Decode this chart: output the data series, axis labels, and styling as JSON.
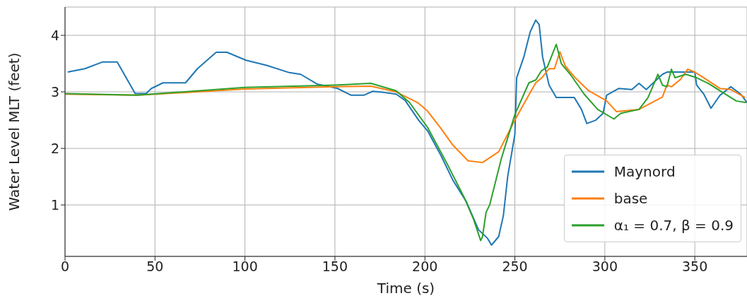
{
  "chart_data": {
    "type": "line",
    "xlabel": "Time (s)",
    "ylabel": "Water Level MLT (feet)",
    "xlim": [
      0,
      379
    ],
    "ylim": [
      0.09,
      4.5
    ],
    "xticks": [
      0,
      50,
      100,
      150,
      200,
      250,
      300,
      350
    ],
    "yticks": [
      1,
      2,
      3,
      4
    ],
    "grid": true,
    "legend": "bottom right",
    "line_style": "solid",
    "marker": "none",
    "series": [
      {
        "name": "Maynord",
        "color": "#1f77b4",
        "x": [
          1.5,
          11,
          21,
          29,
          39,
          45,
          48,
          54.5,
          67,
          73.6,
          84,
          90,
          100.5,
          112,
          124.7,
          131,
          140,
          151.5,
          159,
          166,
          171,
          177,
          184,
          189,
          196.5,
          201.5,
          209,
          215.5,
          223,
          229.8,
          234.8,
          237,
          241,
          243.6,
          246,
          250,
          251,
          255,
          258.5,
          261.6,
          263.5,
          265.4,
          269,
          273,
          283,
          287,
          290,
          295,
          299,
          301,
          307.6,
          315,
          319,
          323,
          325.6,
          332,
          334.5,
          350,
          351,
          355,
          359,
          364,
          370,
          375.5,
          379
        ],
        "values": [
          3.35,
          3.41,
          3.53,
          3.53,
          2.97,
          2.97,
          3.06,
          3.16,
          3.16,
          3.41,
          3.7,
          3.7,
          3.56,
          3.47,
          3.34,
          3.31,
          3.14,
          3.06,
          2.94,
          2.94,
          3.01,
          2.99,
          2.96,
          2.85,
          2.5,
          2.31,
          1.87,
          1.44,
          1.06,
          0.56,
          0.41,
          0.29,
          0.44,
          0.81,
          1.5,
          2.25,
          3.25,
          3.62,
          4.06,
          4.27,
          4.19,
          3.62,
          3.12,
          2.9,
          2.9,
          2.69,
          2.44,
          2.5,
          2.62,
          2.94,
          3.06,
          3.04,
          3.15,
          3.04,
          3.12,
          3.31,
          3.35,
          3.35,
          3.12,
          2.96,
          2.71,
          2.94,
          3.09,
          2.96,
          2.81
        ]
      },
      {
        "name": "base",
        "color": "#ff7f0e",
        "x": [
          0,
          40,
          100,
          150,
          170,
          184,
          196,
          201.5,
          209,
          215.5,
          224,
          232,
          241,
          250,
          256.6,
          261.6,
          265,
          269,
          272,
          275,
          278,
          283.5,
          291,
          301,
          306.5,
          319,
          332,
          334.5,
          337,
          342,
          346,
          350,
          355,
          364,
          370,
          378
        ],
        "values": [
          2.96,
          2.94,
          3.05,
          3.09,
          3.1,
          3.0,
          2.81,
          2.66,
          2.35,
          2.06,
          1.78,
          1.75,
          1.94,
          2.5,
          2.88,
          3.16,
          3.25,
          3.41,
          3.41,
          3.71,
          3.46,
          3.25,
          3.02,
          2.84,
          2.65,
          2.69,
          2.91,
          3.12,
          3.09,
          3.22,
          3.4,
          3.35,
          3.25,
          3.06,
          3.04,
          2.9
        ]
      },
      {
        "name": "α₁ = 0.7, β = 0.9",
        "color": "#2ca02c",
        "x": [
          0,
          40,
          100,
          150,
          170,
          184,
          191.5,
          201.5,
          212,
          222,
          227,
          231,
          232,
          234,
          236,
          242.4,
          250,
          257.8,
          261.6,
          264.7,
          268,
          273,
          275.8,
          280.8,
          288.5,
          296,
          305,
          308.8,
          319,
          324,
          329.5,
          332,
          334.5,
          337,
          339,
          345,
          351,
          357.5,
          365,
          373,
          378.6
        ],
        "values": [
          2.97,
          2.94,
          3.08,
          3.12,
          3.15,
          3.02,
          2.81,
          2.37,
          1.75,
          1.12,
          0.75,
          0.37,
          0.44,
          0.87,
          1.0,
          1.81,
          2.6,
          3.16,
          3.21,
          3.37,
          3.44,
          3.84,
          3.5,
          3.31,
          2.96,
          2.69,
          2.52,
          2.62,
          2.69,
          2.9,
          3.31,
          3.12,
          3.09,
          3.4,
          3.25,
          3.31,
          3.25,
          3.15,
          3.0,
          2.84,
          2.81
        ]
      }
    ]
  }
}
